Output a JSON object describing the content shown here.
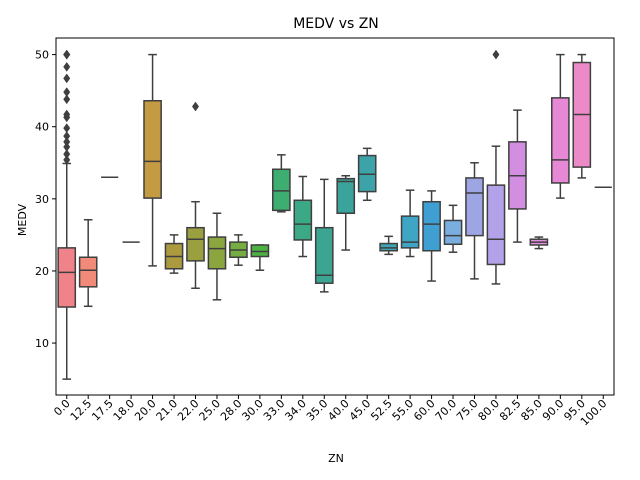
{
  "chart_data": {
    "type": "box",
    "title": "MEDV vs ZN",
    "xlabel": "ZN",
    "ylabel": "MEDV",
    "ylim": [
      2.8,
      52.3
    ],
    "yticks": [
      10,
      20,
      30,
      40,
      50
    ],
    "grid": false,
    "legend": "none",
    "categories": [
      "0.0",
      "12.5",
      "17.5",
      "18.0",
      "20.0",
      "21.0",
      "22.0",
      "25.0",
      "28.0",
      "30.0",
      "33.0",
      "34.0",
      "35.0",
      "40.0",
      "45.0",
      "52.5",
      "55.0",
      "60.0",
      "70.0",
      "75.0",
      "80.0",
      "82.5",
      "85.0",
      "90.0",
      "95.0",
      "100.0"
    ],
    "boxes": [
      {
        "category": "0.0",
        "color": "#f0828a",
        "whisker_low": 5.0,
        "q1": 15.0,
        "median": 19.8,
        "q3": 23.2,
        "whisker_high": 34.9,
        "outliers": [
          35.4,
          36.2,
          37.2,
          37.9,
          38.7,
          39.8,
          41.3,
          41.7,
          43.8,
          44.8,
          46.7,
          48.3,
          50.0,
          50.0,
          50.0
        ]
      },
      {
        "category": "12.5",
        "color": "#f28a7a",
        "whisker_low": 15.1,
        "q1": 17.8,
        "median": 20.1,
        "q3": 21.9,
        "whisker_high": 27.1,
        "outliers": []
      },
      {
        "category": "17.5",
        "color": "#e79a5e",
        "whisker_low": 33.0,
        "q1": 33.0,
        "median": 33.0,
        "q3": 33.0,
        "whisker_high": 33.0,
        "outliers": []
      },
      {
        "category": "18.0",
        "color": "#d6a24f",
        "whisker_low": 24.0,
        "q1": 24.0,
        "median": 24.0,
        "q3": 24.0,
        "whisker_high": 24.0,
        "outliers": []
      },
      {
        "category": "20.0",
        "color": "#c49a42",
        "whisker_low": 20.7,
        "q1": 30.1,
        "median": 35.2,
        "q3": 43.6,
        "whisker_high": 50.0,
        "outliers": []
      },
      {
        "category": "21.0",
        "color": "#ab9a3e",
        "whisker_low": 19.7,
        "q1": 20.3,
        "median": 22.0,
        "q3": 23.8,
        "whisker_high": 25.0,
        "outliers": []
      },
      {
        "category": "22.0",
        "color": "#9aa03f",
        "whisker_low": 17.6,
        "q1": 21.4,
        "median": 24.4,
        "q3": 26.0,
        "whisker_high": 29.6,
        "outliers": [
          42.8
        ]
      },
      {
        "category": "25.0",
        "color": "#8ca63f",
        "whisker_low": 16.0,
        "q1": 20.3,
        "median": 23.1,
        "q3": 24.7,
        "whisker_high": 28.0,
        "outliers": []
      },
      {
        "category": "28.0",
        "color": "#75ad42",
        "whisker_low": 20.8,
        "q1": 21.9,
        "median": 22.9,
        "q3": 24.0,
        "whisker_high": 25.0,
        "outliers": []
      },
      {
        "category": "30.0",
        "color": "#4eb144",
        "whisker_low": 20.1,
        "q1": 22.0,
        "median": 22.7,
        "q3": 23.6,
        "whisker_high": 23.6,
        "outliers": []
      },
      {
        "category": "33.0",
        "color": "#3eae70",
        "whisker_low": 28.2,
        "q1": 28.4,
        "median": 31.1,
        "q3": 34.1,
        "whisker_high": 36.1,
        "outliers": []
      },
      {
        "category": "34.0",
        "color": "#3ca986",
        "whisker_low": 22.0,
        "q1": 24.3,
        "median": 26.5,
        "q3": 29.8,
        "whisker_high": 33.1,
        "outliers": []
      },
      {
        "category": "35.0",
        "color": "#3ba592",
        "whisker_low": 17.1,
        "q1": 18.3,
        "median": 19.4,
        "q3": 26.0,
        "whisker_high": 32.7,
        "outliers": []
      },
      {
        "category": "40.0",
        "color": "#3aa49c",
        "whisker_low": 22.9,
        "q1": 28.0,
        "median": 32.4,
        "q3": 32.8,
        "whisker_high": 33.2,
        "outliers": []
      },
      {
        "category": "45.0",
        "color": "#3ca3a8",
        "whisker_low": 29.8,
        "q1": 31.0,
        "median": 33.4,
        "q3": 36.0,
        "whisker_high": 37.0,
        "outliers": []
      },
      {
        "category": "52.5",
        "color": "#3ea4b6",
        "whisker_low": 22.3,
        "q1": 22.8,
        "median": 23.2,
        "q3": 23.8,
        "whisker_high": 24.8,
        "outliers": []
      },
      {
        "category": "55.0",
        "color": "#3ea5c4",
        "whisker_low": 22.0,
        "q1": 23.2,
        "median": 24.0,
        "q3": 27.6,
        "whisker_high": 31.2,
        "outliers": []
      },
      {
        "category": "60.0",
        "color": "#3f9fd3",
        "whisker_low": 18.6,
        "q1": 22.8,
        "median": 26.5,
        "q3": 29.6,
        "whisker_high": 31.1,
        "outliers": []
      },
      {
        "category": "70.0",
        "color": "#7aaede",
        "whisker_low": 22.6,
        "q1": 23.7,
        "median": 24.9,
        "q3": 27.0,
        "whisker_high": 29.1,
        "outliers": []
      },
      {
        "category": "75.0",
        "color": "#9da6e3",
        "whisker_low": 18.9,
        "q1": 24.9,
        "median": 30.8,
        "q3": 32.9,
        "whisker_high": 35.0,
        "outliers": []
      },
      {
        "category": "80.0",
        "color": "#b3a2ea",
        "whisker_low": 18.2,
        "q1": 20.9,
        "median": 24.4,
        "q3": 31.9,
        "whisker_high": 37.3,
        "outliers": [
          50.0
        ]
      },
      {
        "category": "82.5",
        "color": "#d48ee1",
        "whisker_low": 24.0,
        "q1": 28.6,
        "median": 33.2,
        "q3": 37.9,
        "whisker_high": 42.3,
        "outliers": []
      },
      {
        "category": "85.0",
        "color": "#e28fe0",
        "whisker_low": 23.1,
        "q1": 23.6,
        "median": 24.0,
        "q3": 24.4,
        "whisker_high": 24.7,
        "outliers": []
      },
      {
        "category": "90.0",
        "color": "#e788d6",
        "whisker_low": 30.1,
        "q1": 32.2,
        "median": 35.4,
        "q3": 44.0,
        "whisker_high": 50.0,
        "outliers": []
      },
      {
        "category": "95.0",
        "color": "#ec8ac8",
        "whisker_low": 32.9,
        "q1": 34.4,
        "median": 41.7,
        "q3": 48.9,
        "whisker_high": 50.0,
        "outliers": []
      },
      {
        "category": "100.0",
        "color": "#ec8ab8",
        "whisker_low": 31.6,
        "q1": 31.6,
        "median": 31.6,
        "q3": 31.6,
        "whisker_high": 31.6,
        "outliers": []
      }
    ]
  }
}
